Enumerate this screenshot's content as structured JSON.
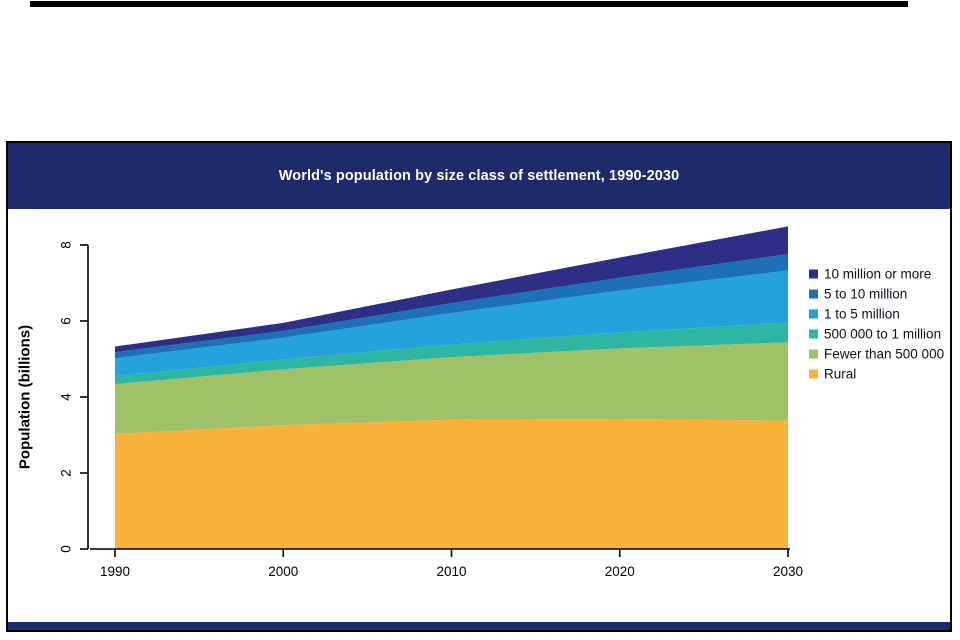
{
  "panel": {
    "header_bg": "#1f2a6b",
    "border_color": "#000000",
    "footer_bg": "#1f2a6b"
  },
  "chart_data": {
    "type": "area",
    "stacked": true,
    "title": "World's population by size class of settlement, 1990-2030",
    "xlabel": "",
    "ylabel": "Population (billions)",
    "x": [
      1990,
      2000,
      2010,
      2020,
      2030
    ],
    "xtick_labels": [
      "1990",
      "2000",
      "2010",
      "2020",
      "2030"
    ],
    "yticks": [
      0,
      2,
      4,
      6,
      8
    ],
    "ylim": [
      0,
      8.6
    ],
    "grid": false,
    "legend_position": "right",
    "series": [
      {
        "name": "Rural",
        "color": "#F9B23A",
        "values": [
          3.03,
          3.26,
          3.4,
          3.42,
          3.38
        ]
      },
      {
        "name": "Fewer than 500 000",
        "color": "#9FC168",
        "values": [
          1.31,
          1.47,
          1.65,
          1.86,
          2.06
        ]
      },
      {
        "name": "500 000 to 1 million",
        "color": "#2FB5A3",
        "values": [
          0.21,
          0.26,
          0.33,
          0.42,
          0.52
        ]
      },
      {
        "name": "1 to 5 million",
        "color": "#23A2DB",
        "values": [
          0.47,
          0.57,
          0.83,
          1.1,
          1.37
        ]
      },
      {
        "name": "5 to 10 million",
        "color": "#1D6FB8",
        "values": [
          0.16,
          0.18,
          0.26,
          0.34,
          0.43
        ]
      },
      {
        "name": "10 million or more",
        "color": "#2D2F84",
        "values": [
          0.15,
          0.21,
          0.36,
          0.53,
          0.73
        ]
      }
    ],
    "legend_order": [
      "10 million or more",
      "5 to 10 million",
      "1 to 5 million",
      "500 000 to 1 million",
      "Fewer than 500 000",
      "Rural"
    ]
  }
}
